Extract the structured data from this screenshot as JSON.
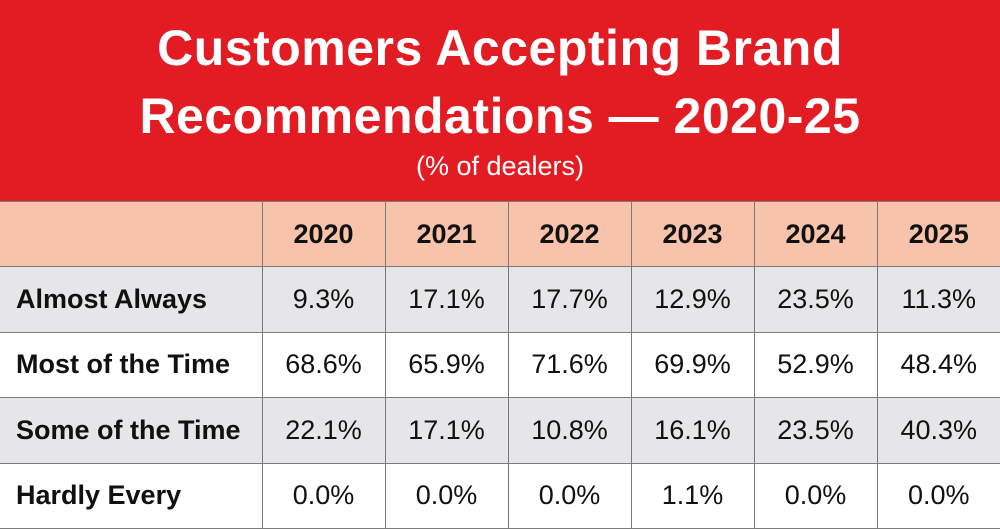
{
  "chart_data": {
    "type": "table",
    "title_line1": "Customers Accepting Brand",
    "title_line2": "Recommendations — 2020-25",
    "subtitle": "(% of dealers)",
    "columns": [
      "2020",
      "2021",
      "2022",
      "2023",
      "2024",
      "2025"
    ],
    "rows": [
      {
        "label": "Almost Always",
        "values": [
          "9.3%",
          "17.1%",
          "17.7%",
          "12.9%",
          "23.5%",
          "11.3%"
        ]
      },
      {
        "label": "Most of the Time",
        "values": [
          "68.6%",
          "65.9%",
          "71.6%",
          "69.9%",
          "52.9%",
          "48.4%"
        ]
      },
      {
        "label": "Some of the Time",
        "values": [
          "22.1%",
          "17.1%",
          "10.8%",
          "16.1%",
          "23.5%",
          "40.3%"
        ]
      },
      {
        "label": "Hardly Every",
        "values": [
          "0.0%",
          "0.0%",
          "0.0%",
          "1.1%",
          "0.0%",
          "0.0%"
        ]
      }
    ],
    "colors": {
      "header_band": "#e31b23",
      "column_header": "#f7c3ab",
      "shaded_row": "#e6e6e8",
      "plain_row": "#ffffff"
    }
  }
}
